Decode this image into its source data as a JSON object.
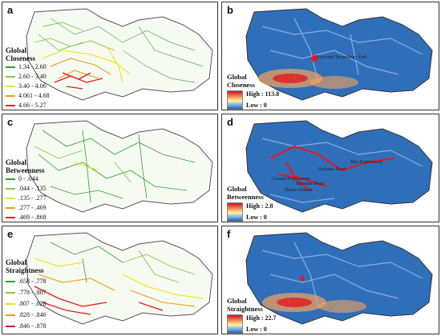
{
  "panels": [
    {
      "label": "a",
      "legend_title": [
        "Global",
        "Closeness"
      ],
      "items": [
        {
          "text": "1.34 - 2.60",
          "color": "#2e9e2e"
        },
        {
          "text": "2.60 - 3.40",
          "color": "#8cc63f"
        },
        {
          "text": "3.40 - 4.06",
          "color": "#f2e300"
        },
        {
          "text": "4.061 - 4.68",
          "color": "#f39c12"
        },
        {
          "text": "4.66 - 5.27",
          "color": "#e31a1c"
        }
      ]
    },
    {
      "label": "b",
      "legend_title": [
        "Global",
        "Closeness"
      ],
      "high": "High : 113.8",
      "low": "Low : 0",
      "annotations": [
        "Foxconn Technology Park"
      ]
    },
    {
      "label": "c",
      "legend_title": [
        "Global",
        "Betweenness"
      ],
      "items": [
        {
          "text": "0 - .044",
          "color": "#2e9e2e"
        },
        {
          "text": ".044 - .135",
          "color": "#8cc63f"
        },
        {
          "text": ".135 - .277",
          "color": "#f2e300"
        },
        {
          "text": ".277 - .469",
          "color": "#f39c12"
        },
        {
          "text": ".469 - .868",
          "color": "#e31a1c"
        }
      ]
    },
    {
      "label": "d",
      "legend_title": [
        "Global",
        "Betweenness"
      ],
      "high": "High : 2.8",
      "low": "Low : 0",
      "annotations": [
        "Jihe Expressway",
        "Coastal Expressway",
        "Shennan Road",
        "Beihuan Road",
        "Baoan Avenue"
      ]
    },
    {
      "label": "e",
      "legend_title": [
        "Global",
        "Straightness"
      ],
      "items": [
        {
          "text": ".658 - .778",
          "color": "#2e9e2e"
        },
        {
          "text": ".778 - .807",
          "color": "#8cc63f"
        },
        {
          "text": ".807 - .828",
          "color": "#f2e300"
        },
        {
          "text": ".828 - .846",
          "color": "#f39c12"
        },
        {
          "text": ".846 - .878",
          "color": "#e31a1c"
        }
      ]
    },
    {
      "label": "f",
      "legend_title": [
        "Global",
        "Straightness"
      ],
      "high": "High : 22.7",
      "low": "Low : 0"
    }
  ]
}
